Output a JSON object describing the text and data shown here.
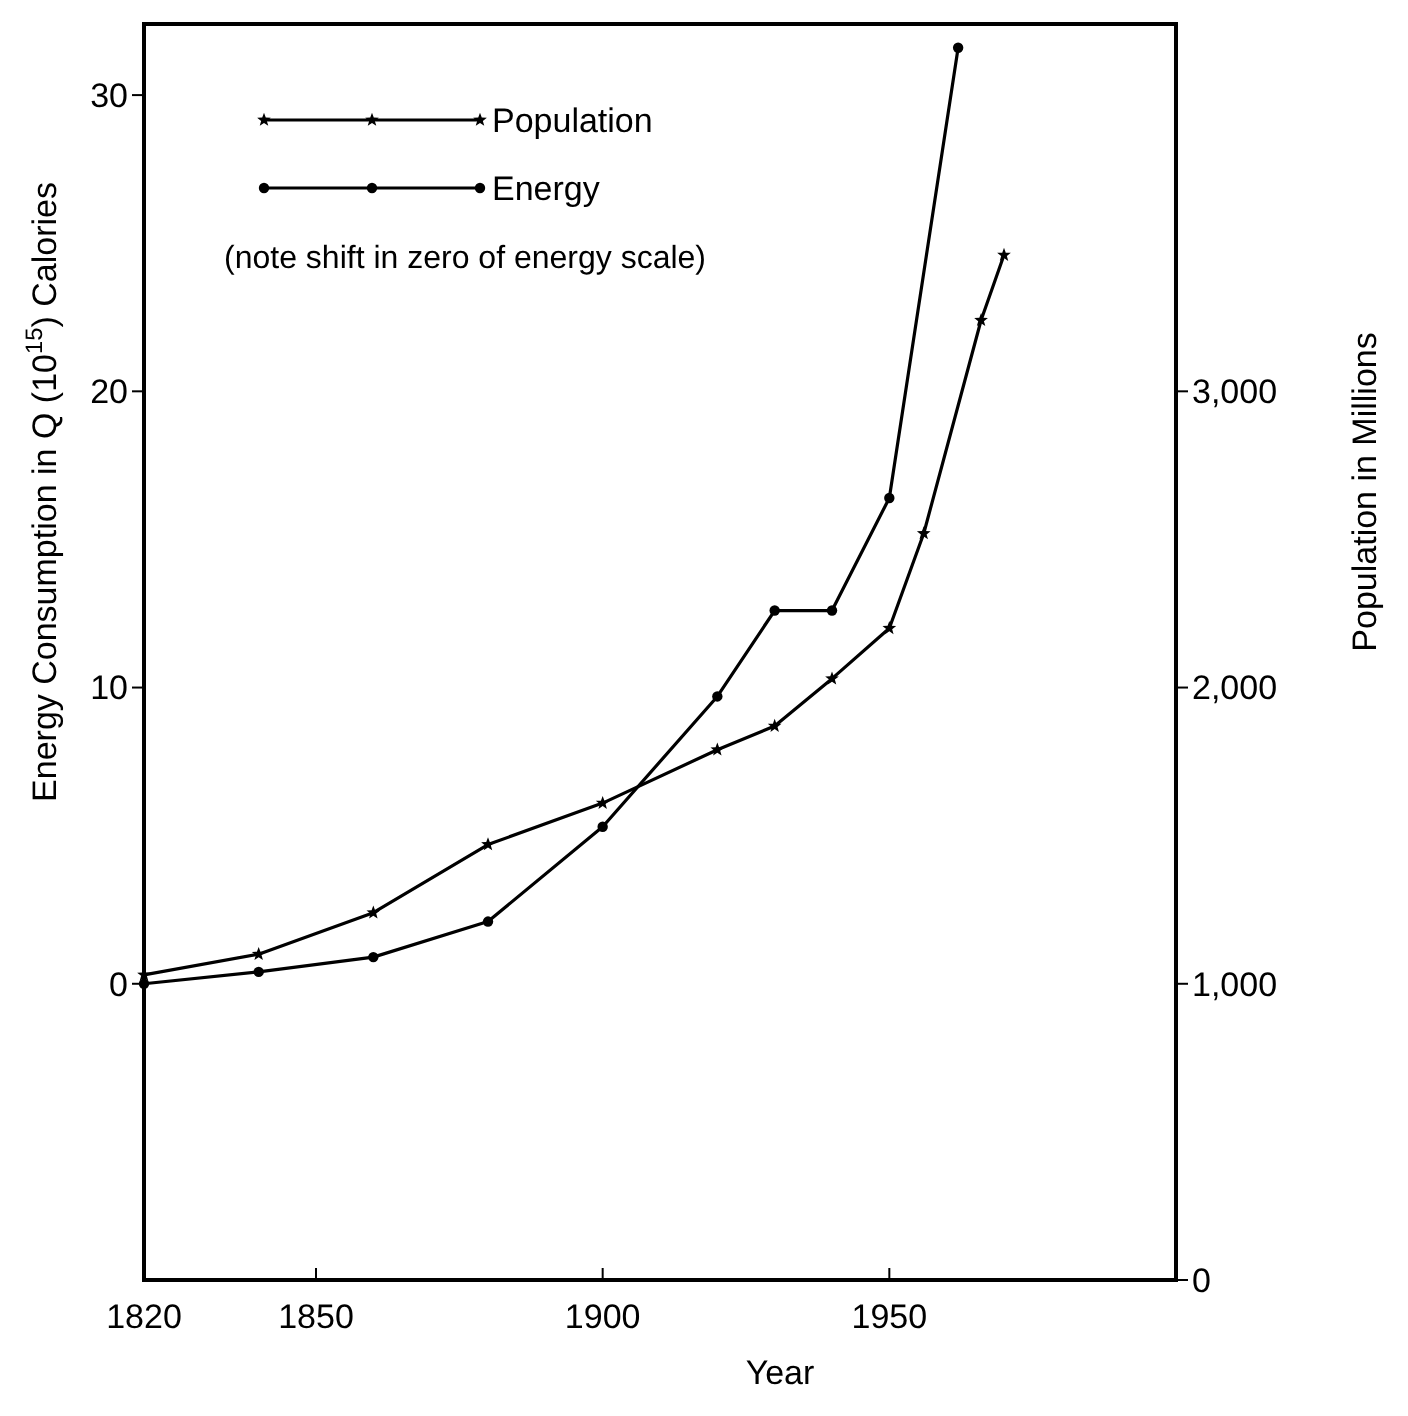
{
  "chart_data": {
    "type": "line",
    "xlabel": "Year",
    "ylabel": "Energy Consumption in Q (10$^{15}$) Calories",
    "y2label": "Population in Millions",
    "annotations": [
      "(note shift in zero of energy scale)"
    ],
    "xlim": [
      1820,
      2000
    ],
    "xticks": [
      1820,
      1850,
      1900,
      1950
    ],
    "ylim": [
      -10,
      32.4
    ],
    "yticks": [
      0,
      10,
      20,
      30
    ],
    "y2lim": [
      0,
      4240
    ],
    "y2ticks": [
      {
        "value": 0,
        "label": "0"
      },
      {
        "value": 1000,
        "label": "1,000"
      },
      {
        "value": 2000,
        "label": "2,000"
      },
      {
        "value": 3000,
        "label": "3,000"
      }
    ],
    "legend": "top left",
    "grid": false,
    "line_style": "solid",
    "series": [
      {
        "name": "Population",
        "color": "#000000",
        "axis": "y2",
        "marker": "star",
        "x": [
          1820,
          1840,
          1860,
          1880,
          1900,
          1920,
          1930,
          1940,
          1950,
          1956,
          1966,
          1970
        ],
        "values": [
          1030,
          1100,
          1240,
          1470,
          1610,
          1790,
          1870,
          2030,
          2200,
          2520,
          3240,
          3460
        ]
      },
      {
        "name": "Energy",
        "color": "#000000",
        "marker": "circle",
        "x": [
          1820,
          1840,
          1860,
          1880,
          1900,
          1920,
          1930,
          1940,
          1950,
          1962
        ],
        "values": [
          0,
          0.4,
          0.9,
          2.1,
          5.3,
          9.7,
          12.6,
          12.6,
          16.4,
          31.6
        ]
      }
    ]
  }
}
